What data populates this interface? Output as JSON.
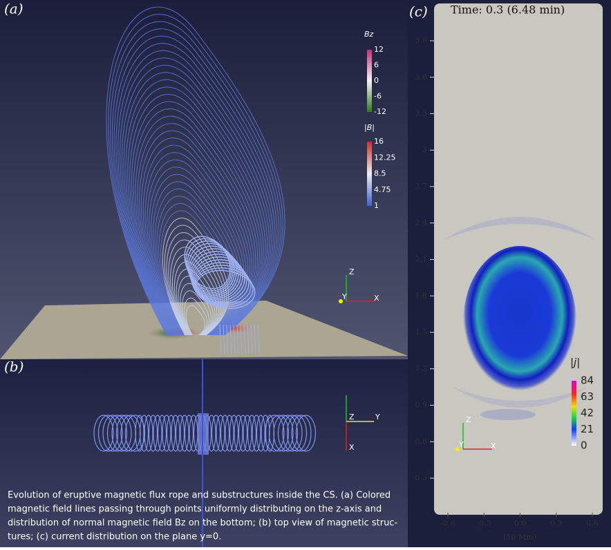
{
  "panel_a": {
    "label": "(a)",
    "bz_bar": {
      "title": "Bz",
      "ticks": [
        "12",
        "6",
        "0",
        "-6",
        "-12"
      ]
    },
    "b_bar": {
      "title": "|B|",
      "ticks": [
        "16",
        "12.25",
        "8.5",
        "4.75",
        "1"
      ]
    },
    "axes": [
      "Z",
      "Y",
      "X"
    ]
  },
  "panel_b": {
    "label": "(b)",
    "axes": [
      "Z",
      "Y",
      "X"
    ]
  },
  "caption": {
    "lines": [
      "Evolution of eruptive magnetic flux rope and substructures inside the CS. (a) Colored",
      "magnetic field lines passing through points uniformly distributing on the z-axis and",
      "distribution of normal magnetic field Bz on the bottom; (b) top view of magnetic struc-",
      "tures; (c) current distribution on the plane y=0."
    ]
  },
  "panel_c": {
    "label": "(c)",
    "time": "Time: 0.3 (6.48 min)",
    "yticks": [
      "3.9",
      "3.6",
      "3.3",
      "3",
      "2.7",
      "2.4",
      "2.1",
      "1.8",
      "1.5",
      "1.2",
      "0.9",
      "0.6",
      "0.3"
    ],
    "xticks": [
      "-0.6",
      "-0.3",
      "0.0",
      "0.3",
      "0.6"
    ],
    "xlabel": "(50 Mm)",
    "j_bar": {
      "title": "|j|",
      "ticks": [
        "84",
        "63",
        "42",
        "21",
        "0"
      ]
    },
    "axes": [
      "Z",
      "Y",
      "X"
    ]
  }
}
